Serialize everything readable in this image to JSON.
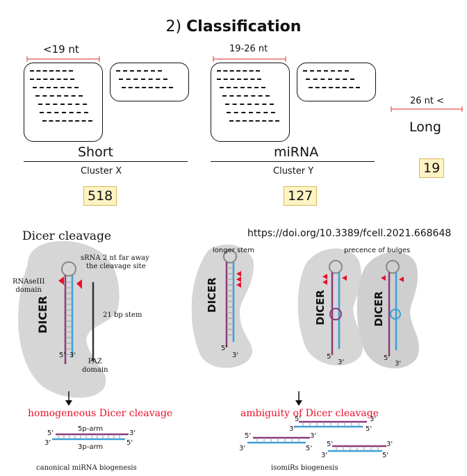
{
  "classification": {
    "number": "2)",
    "word": "Classification",
    "short": {
      "range": "<19 nt",
      "category": "Short",
      "cluster": "Cluster X",
      "count": "518"
    },
    "mirna": {
      "range": "19-26 nt",
      "category": "miRNA",
      "cluster": "Cluster Y",
      "count": "127"
    },
    "long": {
      "range": "26 nt <",
      "category": "Long",
      "count": "19"
    }
  },
  "doi": "https://doi.org/10.3389/fcell.2021.668648",
  "dicer": {
    "title": "Dicer cleavage",
    "enzyme": "DICER",
    "srna_note_1": "sRNA 2 nt far away",
    "srna_note_2": "the cleavage site",
    "rnaseiii_1": "RNAseIII",
    "rnaseiii_2": "domain",
    "stem": "21 bp stem",
    "paz_1": "PAZ",
    "paz_2": "domain",
    "end5": "5'",
    "end3": "3'",
    "longer_stem": "longer stem",
    "bulges": "precence of bulges",
    "homogeneous": "homogeneous Dicer cleavage",
    "ambiguity": "ambiguity of Dicer cleavage",
    "arm5p": "5p-arm",
    "arm3p": "3p-arm",
    "canonical": "canonical miRNA biogenesis",
    "isomirs": "isomiRs biogenesis"
  },
  "colors": {
    "range_line": "#e05050",
    "highlight": "#fff3c4",
    "strand_5p": "#8a3a7a",
    "strand_3p": "#3aa0d8",
    "red_mark": "#e8102a",
    "dicer_body": "#d6d6d6"
  }
}
